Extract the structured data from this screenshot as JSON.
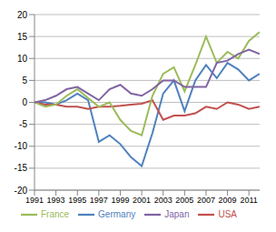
{
  "chart_data": {
    "type": "line",
    "x": [
      1991,
      1992,
      1993,
      1994,
      1995,
      1996,
      1997,
      1998,
      1999,
      2000,
      2001,
      2002,
      2003,
      2004,
      2005,
      2006,
      2007,
      2008,
      2009,
      2010,
      2011,
      2012
    ],
    "series": [
      {
        "name": "Germany",
        "color": "#4f81bd",
        "values": [
          0,
          0,
          -0.5,
          0.5,
          2,
          0.5,
          -9,
          -7.5,
          -9.5,
          -12.5,
          -14.5,
          -7,
          2,
          5,
          -2,
          5,
          8.5,
          5.5,
          9,
          7.5,
          5,
          6.5
        ]
      },
      {
        "name": "USA",
        "color": "#c0504d",
        "values": [
          0,
          -0.5,
          -0.5,
          -1,
          -1,
          -1.5,
          -1,
          -1,
          -0.8,
          -0.5,
          -0.3,
          0.5,
          -4,
          -3,
          -3,
          -2.5,
          -1,
          -1.5,
          0,
          -0.5,
          -1.5,
          -1
        ]
      },
      {
        "name": "France",
        "color": "#9bbb59",
        "values": [
          0,
          -1,
          -0.5,
          1.5,
          3,
          1,
          -1,
          0,
          -4,
          -6.5,
          -7.5,
          1.5,
          6.5,
          8,
          2.5,
          8.5,
          15,
          9,
          11.5,
          10,
          14,
          16
        ]
      },
      {
        "name": "Japan",
        "color": "#8064a2",
        "values": [
          0,
          0.5,
          1.5,
          3,
          3.5,
          2,
          0.5,
          3,
          4,
          2,
          1.5,
          3,
          5,
          5,
          3.5,
          3.5,
          3.5,
          9,
          9.5,
          11,
          12,
          11
        ]
      }
    ],
    "xlim": [
      1991,
      2012
    ],
    "xticks": [
      1991,
      1993,
      1995,
      1997,
      1999,
      2001,
      2003,
      2005,
      2007,
      2009,
      2011
    ],
    "ylim": [
      -20,
      20
    ],
    "yticks": [
      -20,
      -15,
      -10,
      -5,
      0,
      5,
      10,
      15,
      20
    ],
    "grid": true,
    "legend": "bottom"
  }
}
